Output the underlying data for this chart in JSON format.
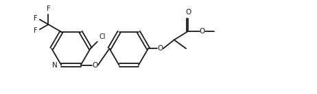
{
  "background": "#ffffff",
  "line_color": "#1a1a1a",
  "line_width": 1.3,
  "font_size": 7.0,
  "fig_width": 4.62,
  "fig_height": 1.38,
  "dpi": 100,
  "xlim": [
    0,
    9.5
  ],
  "ylim": [
    0,
    3.0
  ]
}
